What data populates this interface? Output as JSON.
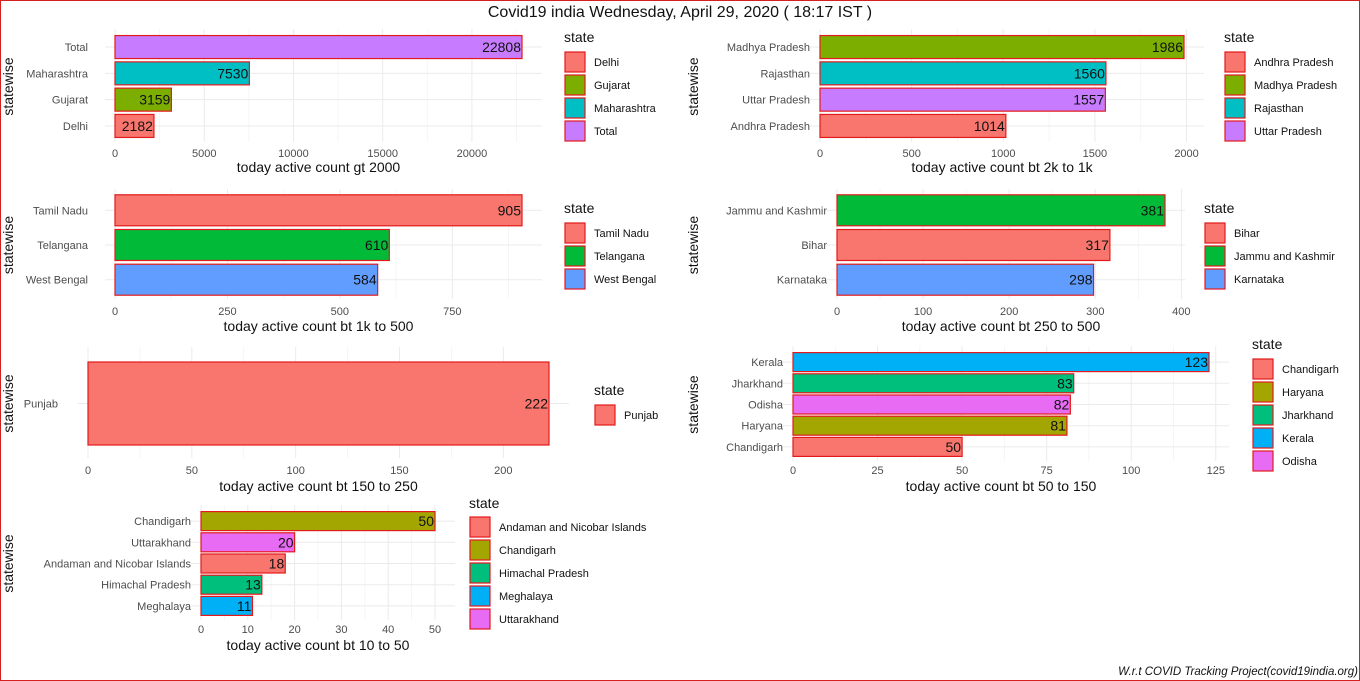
{
  "title": "Covid19 india Wednesday, April 29, 2020 (  18:17 IST )",
  "footer": "W.r.t COVID Tracking Project(covid19india.org)",
  "colors": {
    "border": "#e31a1c",
    "grid": "#ebebeb"
  },
  "chart_data": [
    {
      "type": "bar",
      "orientation": "horizontal",
      "categories": [
        "Total",
        "Maharashtra",
        "Gujarat",
        "Delhi"
      ],
      "values": [
        22808,
        7530,
        3159,
        2182
      ],
      "colors": [
        "#c77cff",
        "#00bfc4",
        "#7cae00",
        "#f8766d"
      ],
      "xlabel": "today active count gt 2000",
      "ylabel": "statewise",
      "xlim": [
        0,
        22808
      ],
      "xticks": [
        0,
        5000,
        10000,
        15000,
        20000
      ],
      "legend_title": "state",
      "legend": [
        {
          "name": "Delhi",
          "color": "#f8766d"
        },
        {
          "name": "Gujarat",
          "color": "#7cae00"
        },
        {
          "name": "Maharashtra",
          "color": "#00bfc4"
        },
        {
          "name": "Total",
          "color": "#c77cff"
        }
      ]
    },
    {
      "type": "bar",
      "orientation": "horizontal",
      "categories": [
        "Madhya Pradesh",
        "Rajasthan",
        "Uttar Pradesh",
        "Andhra Pradesh"
      ],
      "values": [
        1986,
        1560,
        1557,
        1014
      ],
      "colors": [
        "#7cae00",
        "#00bfc4",
        "#c77cff",
        "#f8766d"
      ],
      "xlabel": "today active count bt 2k to 1k",
      "ylabel": "statewise",
      "xlim": [
        0,
        1986
      ],
      "xticks": [
        0,
        500,
        1000,
        1500,
        2000
      ],
      "legend_title": "state",
      "legend": [
        {
          "name": "Andhra Pradesh",
          "color": "#f8766d"
        },
        {
          "name": "Madhya Pradesh",
          "color": "#7cae00"
        },
        {
          "name": "Rajasthan",
          "color": "#00bfc4"
        },
        {
          "name": "Uttar Pradesh",
          "color": "#c77cff"
        }
      ]
    },
    {
      "type": "bar",
      "orientation": "horizontal",
      "categories": [
        "Tamil Nadu",
        "Telangana",
        "West Bengal"
      ],
      "values": [
        905,
        610,
        584
      ],
      "colors": [
        "#f8766d",
        "#00ba38",
        "#619cff"
      ],
      "xlabel": "today active count bt 1k to 500",
      "ylabel": "statewise",
      "xlim": [
        0,
        905
      ],
      "xticks": [
        0,
        250,
        500,
        750
      ],
      "legend_title": "state",
      "legend": [
        {
          "name": "Tamil Nadu",
          "color": "#f8766d"
        },
        {
          "name": "Telangana",
          "color": "#00ba38"
        },
        {
          "name": "West Bengal",
          "color": "#619cff"
        }
      ]
    },
    {
      "type": "bar",
      "orientation": "horizontal",
      "categories": [
        "Jammu and Kashmir",
        "Bihar",
        "Karnataka"
      ],
      "values": [
        381,
        317,
        298
      ],
      "colors": [
        "#00ba38",
        "#f8766d",
        "#619cff"
      ],
      "xlabel": "today active count bt 250 to 500",
      "ylabel": "statewise",
      "xlim": [
        0,
        381
      ],
      "xticks": [
        0,
        100,
        200,
        300,
        400
      ],
      "legend_title": "state",
      "legend": [
        {
          "name": "Bihar",
          "color": "#f8766d"
        },
        {
          "name": "Jammu and Kashmir",
          "color": "#00ba38"
        },
        {
          "name": "Karnataka",
          "color": "#619cff"
        }
      ]
    },
    {
      "type": "bar",
      "orientation": "horizontal",
      "categories": [
        "Punjab"
      ],
      "values": [
        222
      ],
      "colors": [
        "#f8766d"
      ],
      "xlabel": "today active count bt 150 to 250",
      "ylabel": "statewise",
      "xlim": [
        0,
        222
      ],
      "xticks": [
        0,
        50,
        100,
        150,
        200
      ],
      "legend_title": "state",
      "legend": [
        {
          "name": "Punjab",
          "color": "#f8766d"
        }
      ]
    },
    {
      "type": "bar",
      "orientation": "horizontal",
      "categories": [
        "Kerala",
        "Jharkhand",
        "Odisha",
        "Haryana",
        "Chandigarh"
      ],
      "values": [
        123,
        83,
        82,
        81,
        50
      ],
      "colors": [
        "#00b0f6",
        "#00bf7d",
        "#e76bf3",
        "#a3a500",
        "#f8766d"
      ],
      "xlabel": "today active count bt 50 to 150",
      "ylabel": "statewise",
      "xlim": [
        0,
        123
      ],
      "xticks": [
        0,
        25,
        50,
        75,
        100,
        125
      ],
      "legend_title": "state",
      "legend": [
        {
          "name": "Chandigarh",
          "color": "#f8766d"
        },
        {
          "name": "Haryana",
          "color": "#a3a500"
        },
        {
          "name": "Jharkhand",
          "color": "#00bf7d"
        },
        {
          "name": "Kerala",
          "color": "#00b0f6"
        },
        {
          "name": "Odisha",
          "color": "#e76bf3"
        }
      ]
    },
    {
      "type": "bar",
      "orientation": "horizontal",
      "categories": [
        "Chandigarh",
        "Uttarakhand",
        "Andaman and Nicobar Islands",
        "Himachal Pradesh",
        "Meghalaya"
      ],
      "values": [
        50,
        20,
        18,
        13,
        11
      ],
      "colors": [
        "#a3a500",
        "#e76bf3",
        "#f8766d",
        "#00bf7d",
        "#00b0f6"
      ],
      "xlabel": "today active count bt 10 to 50",
      "ylabel": "statewise",
      "xlim": [
        0,
        50
      ],
      "xticks": [
        0,
        10,
        20,
        30,
        40,
        50
      ],
      "legend_title": "state",
      "legend": [
        {
          "name": "Andaman and Nicobar Islands",
          "color": "#f8766d"
        },
        {
          "name": "Chandigarh",
          "color": "#a3a500"
        },
        {
          "name": "Himachal Pradesh",
          "color": "#00bf7d"
        },
        {
          "name": "Meghalaya",
          "color": "#00b0f6"
        },
        {
          "name": "Uttarakhand",
          "color": "#e76bf3"
        }
      ]
    }
  ]
}
